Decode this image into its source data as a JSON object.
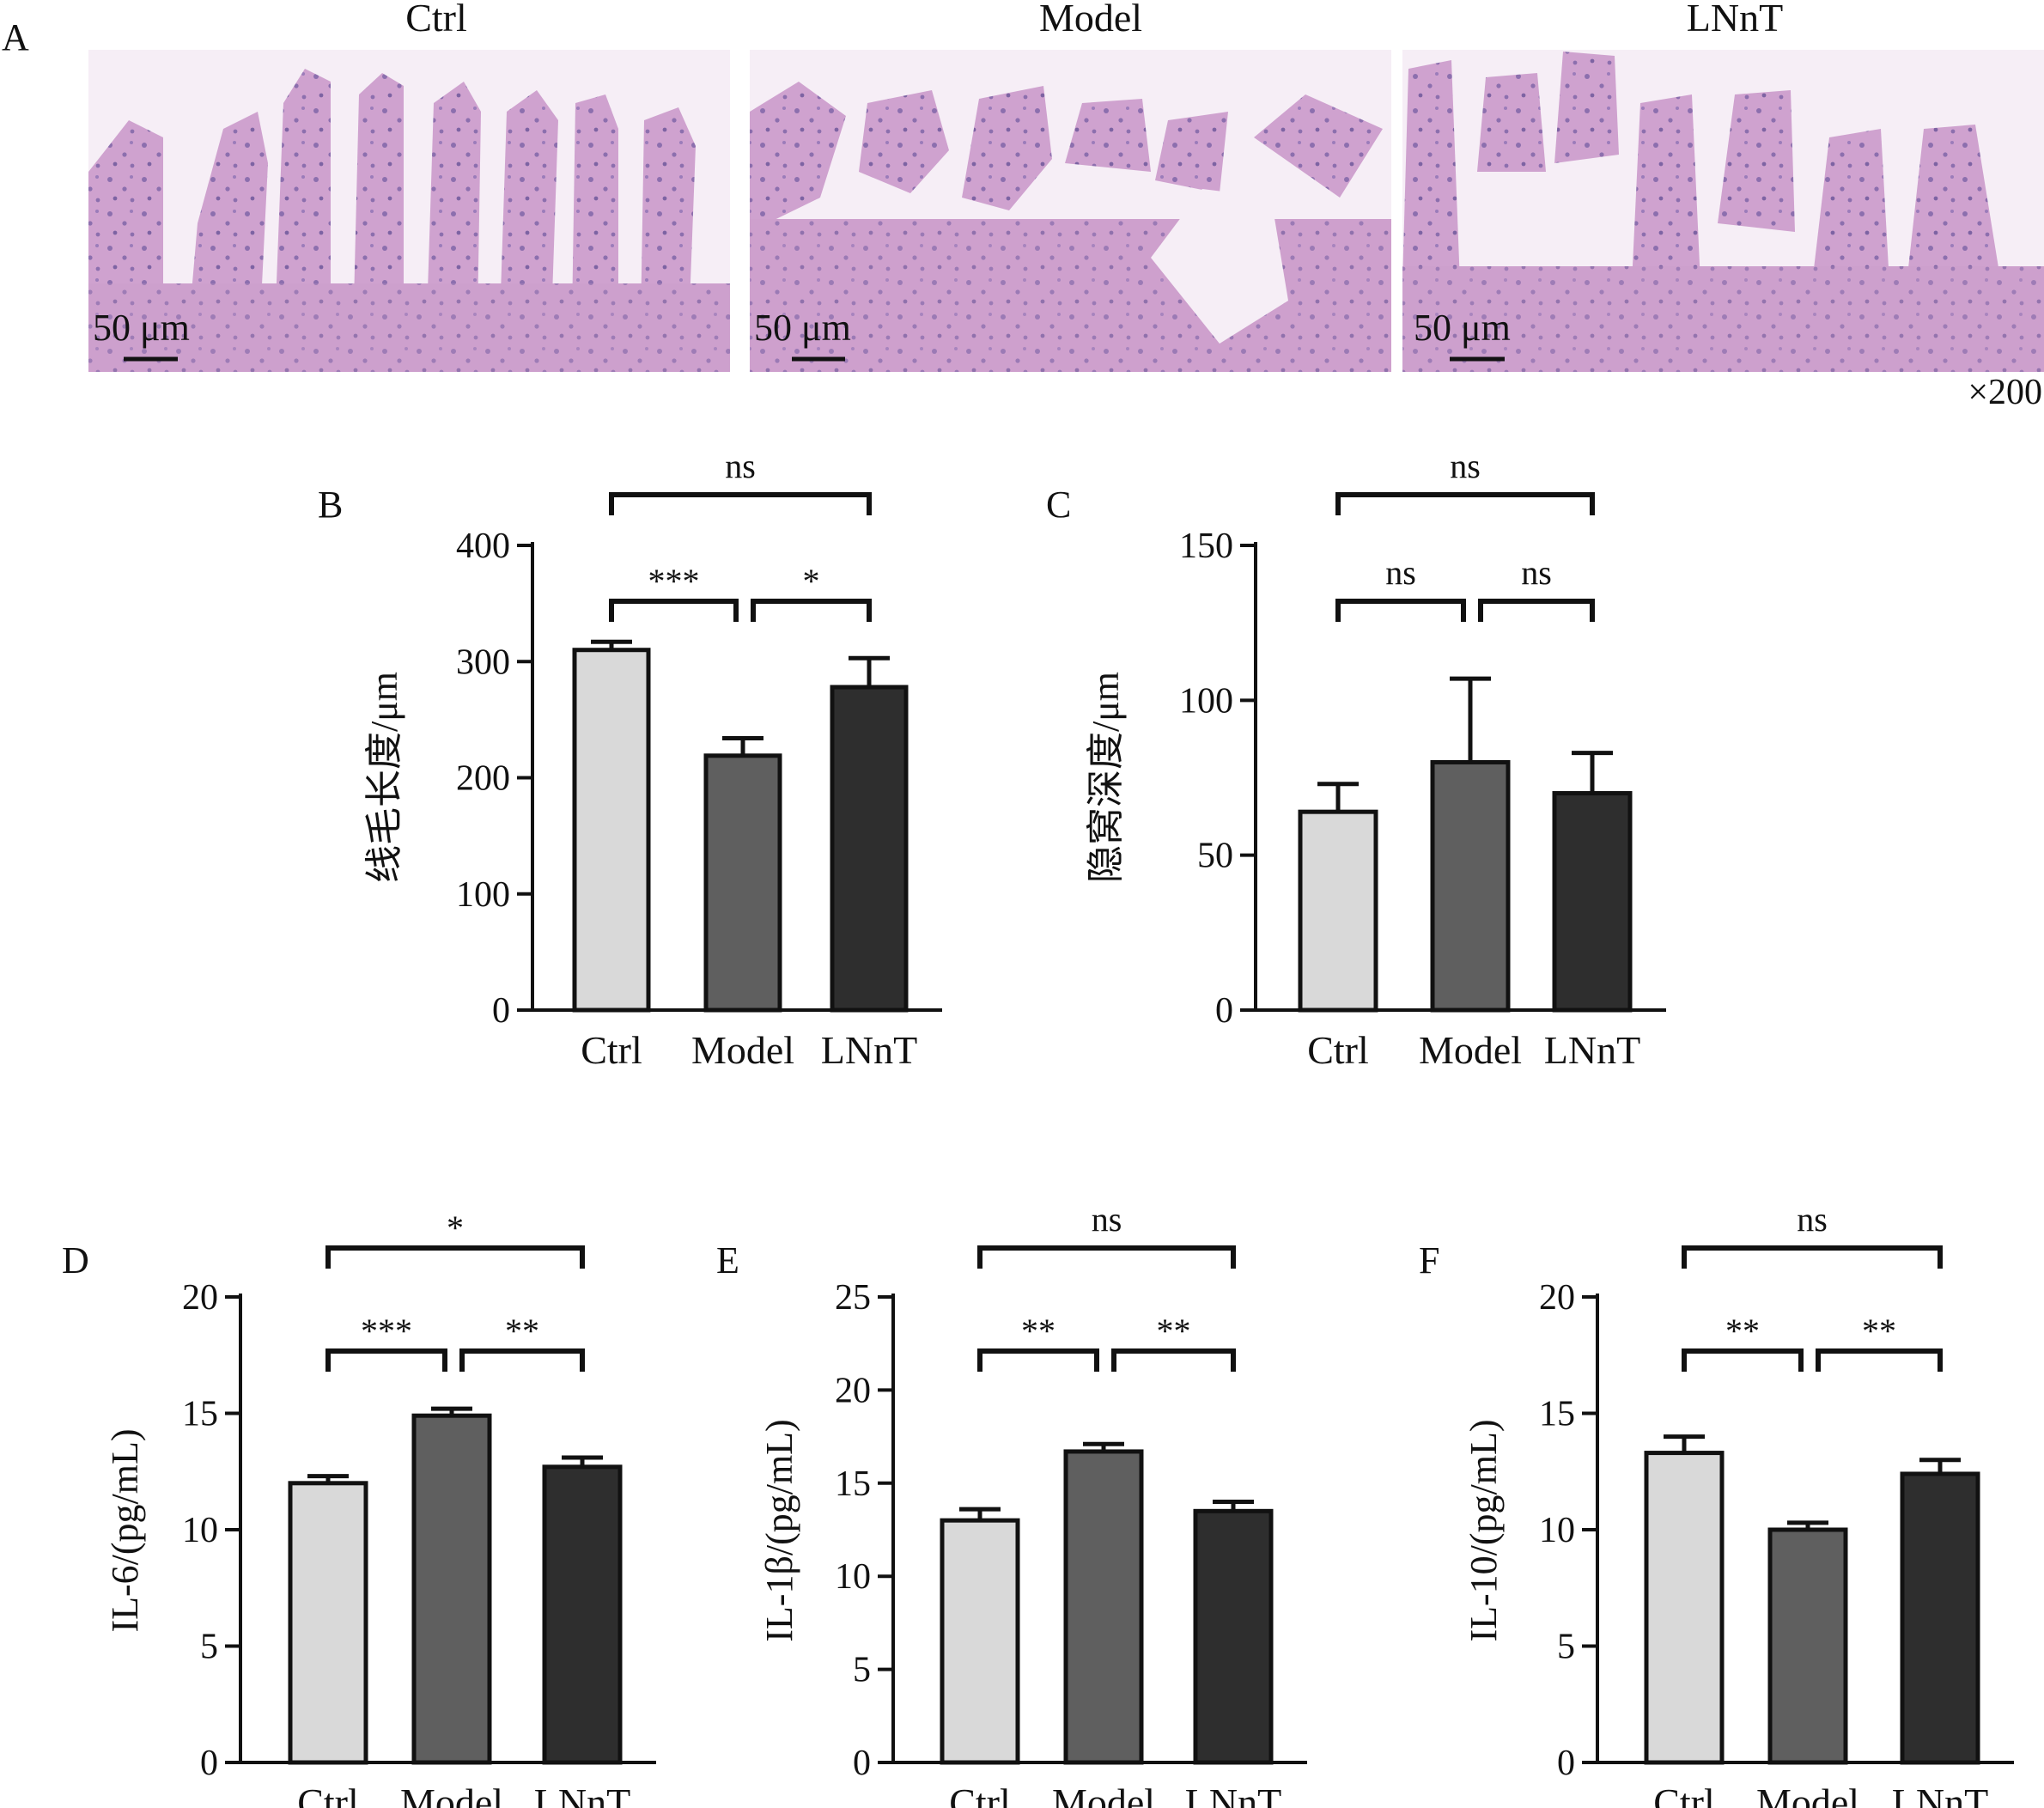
{
  "figure": {
    "histology": {
      "panel_letter": "A",
      "images": [
        {
          "label": "Ctrl",
          "scale_bar_text": "50 μm"
        },
        {
          "label": "Model",
          "scale_bar_text": "50 μm"
        },
        {
          "label": "LNnT",
          "scale_bar_text": "50 μm"
        }
      ],
      "magnification": "×200"
    }
  },
  "colors": {
    "ctrl_bar": "#d9d9d9",
    "model_bar": "#5f5f5f",
    "lnnt_bar": "#2e2e2e",
    "stain_background": "#d9b3d6",
    "stain_tissue": "#b98bb9",
    "stain_nuclei": "#6f5a98"
  },
  "chart_data": [
    {
      "panel": "B",
      "type": "bar",
      "categories": [
        "Ctrl",
        "Model",
        "LNnT"
      ],
      "values": [
        310,
        219,
        278
      ],
      "errors": [
        7,
        15,
        25
      ],
      "ylabel": "线毛长度/μm",
      "ylim": [
        0,
        400
      ],
      "yticks": [
        0,
        100,
        200,
        300,
        400
      ],
      "comparisons": [
        {
          "from": 0,
          "to": 1,
          "label": "***"
        },
        {
          "from": 1,
          "to": 2,
          "label": "*"
        },
        {
          "from": 0,
          "to": 2,
          "label": "ns"
        }
      ]
    },
    {
      "panel": "C",
      "type": "bar",
      "categories": [
        "Ctrl",
        "Model",
        "LNnT"
      ],
      "values": [
        64,
        80,
        70
      ],
      "errors": [
        9,
        27,
        13
      ],
      "ylabel": "隐窝深度/μm",
      "ylim": [
        0,
        150
      ],
      "yticks": [
        0,
        50,
        100,
        150
      ],
      "comparisons": [
        {
          "from": 0,
          "to": 1,
          "label": "ns"
        },
        {
          "from": 1,
          "to": 2,
          "label": "ns"
        },
        {
          "from": 0,
          "to": 2,
          "label": "ns"
        }
      ]
    },
    {
      "panel": "D",
      "type": "bar",
      "categories": [
        "Ctrl",
        "Model",
        "LNnT"
      ],
      "values": [
        12.0,
        14.9,
        12.7
      ],
      "errors": [
        0.3,
        0.3,
        0.4
      ],
      "ylabel": "IL-6/(pg/mL)",
      "ylim": [
        0,
        20
      ],
      "yticks": [
        0,
        5,
        10,
        15,
        20
      ],
      "comparisons": [
        {
          "from": 0,
          "to": 1,
          "label": "***"
        },
        {
          "from": 1,
          "to": 2,
          "label": "**"
        },
        {
          "from": 0,
          "to": 2,
          "label": "*"
        }
      ]
    },
    {
      "panel": "E",
      "type": "bar",
      "categories": [
        "Ctrl",
        "Model",
        "LNnT"
      ],
      "values": [
        13.0,
        16.7,
        13.5
      ],
      "errors": [
        0.6,
        0.4,
        0.5
      ],
      "ylabel": "IL-1β/(pg/mL)",
      "ylim": [
        0,
        25
      ],
      "yticks": [
        0,
        5,
        10,
        15,
        20,
        25
      ],
      "comparisons": [
        {
          "from": 0,
          "to": 1,
          "label": "**"
        },
        {
          "from": 1,
          "to": 2,
          "label": "**"
        },
        {
          "from": 0,
          "to": 2,
          "label": "ns"
        }
      ]
    },
    {
      "panel": "F",
      "type": "bar",
      "categories": [
        "Ctrl",
        "Model",
        "LNnT"
      ],
      "values": [
        13.3,
        10.0,
        12.4
      ],
      "errors": [
        0.7,
        0.3,
        0.6
      ],
      "ylabel": "IL-10/(pg/mL)",
      "ylim": [
        0,
        20
      ],
      "yticks": [
        0,
        5,
        10,
        15,
        20
      ],
      "comparisons": [
        {
          "from": 0,
          "to": 1,
          "label": "**"
        },
        {
          "from": 1,
          "to": 2,
          "label": "**"
        },
        {
          "from": 0,
          "to": 2,
          "label": "ns"
        }
      ]
    }
  ]
}
